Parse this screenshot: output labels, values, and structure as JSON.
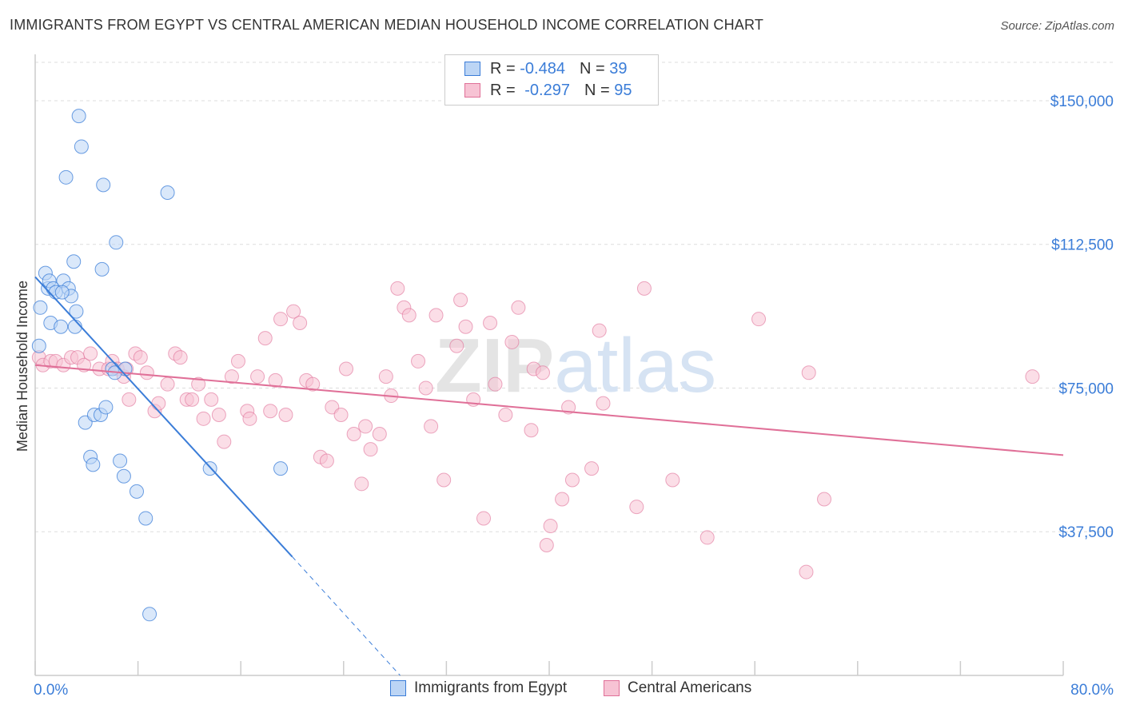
{
  "title": "IMMIGRANTS FROM EGYPT VS CENTRAL AMERICAN MEDIAN HOUSEHOLD INCOME CORRELATION CHART",
  "source": "Source: ZipAtlas.com",
  "legend": [
    {
      "r_label": "R = ",
      "r_value": "-0.484",
      "n_label": "N = ",
      "n_value": "39"
    },
    {
      "r_label": "R = ",
      "r_value": "-0.297",
      "n_label": "N = ",
      "n_value": "95"
    }
  ],
  "bottom_legend": [
    "Immigrants from Egypt",
    "Central Americans"
  ],
  "colors": {
    "egypt": "#3b7dd8",
    "egypt_fill": "#bcd5f5",
    "central": "#e07098",
    "central_fill": "#f7c3d4",
    "axis_label": "#3b7dd8",
    "grid": "#dddddd"
  },
  "chart_data": {
    "type": "scatter",
    "xlabel": "",
    "ylabel": "Median Household Income",
    "xlim": [
      0,
      80
    ],
    "ylim": [
      0,
      160000
    ],
    "x_tick_labels": [
      "0.0%",
      "80.0%"
    ],
    "y_ticks": [
      37500,
      75000,
      112500,
      150000
    ],
    "y_tick_labels": [
      "$37,500",
      "$75,000",
      "$112,500",
      "$150,000"
    ],
    "watermark": "ZIPatlas",
    "series": [
      {
        "name": "Immigrants from Egypt",
        "points": [
          [
            0.4,
            96000
          ],
          [
            0.8,
            105000
          ],
          [
            1.0,
            101000
          ],
          [
            1.1,
            103000
          ],
          [
            1.2,
            92000
          ],
          [
            1.4,
            101000
          ],
          [
            1.6,
            100000
          ],
          [
            2.0,
            91000
          ],
          [
            2.2,
            103000
          ],
          [
            2.4,
            130000
          ],
          [
            2.6,
            101000
          ],
          [
            2.8,
            99000
          ],
          [
            3.0,
            108000
          ],
          [
            3.1,
            91000
          ],
          [
            3.2,
            95000
          ],
          [
            3.4,
            146000
          ],
          [
            3.6,
            138000
          ],
          [
            3.9,
            66000
          ],
          [
            4.3,
            57000
          ],
          [
            4.5,
            55000
          ],
          [
            4.6,
            68000
          ],
          [
            5.1,
            68000
          ],
          [
            5.2,
            106000
          ],
          [
            5.3,
            128000
          ],
          [
            5.5,
            70000
          ],
          [
            6.0,
            80000
          ],
          [
            6.3,
            113000
          ],
          [
            6.6,
            56000
          ],
          [
            6.9,
            52000
          ],
          [
            7.0,
            80000
          ],
          [
            7.9,
            48000
          ],
          [
            8.6,
            41000
          ],
          [
            8.9,
            16000
          ],
          [
            10.3,
            126000
          ],
          [
            13.6,
            54000
          ],
          [
            19.1,
            54000
          ],
          [
            0.3,
            86000
          ],
          [
            6.2,
            79000
          ],
          [
            2.1,
            100000
          ]
        ],
        "trend": [
          [
            0,
            104000
          ],
          [
            20,
            31000
          ]
        ],
        "trend_dashed": [
          [
            20,
            31000
          ],
          [
            28.4,
            0
          ]
        ]
      },
      {
        "name": "Central Americans",
        "points": [
          [
            0.3,
            83000
          ],
          [
            0.6,
            81000
          ],
          [
            1.2,
            82000
          ],
          [
            1.6,
            82000
          ],
          [
            2.2,
            81000
          ],
          [
            2.8,
            83000
          ],
          [
            3.3,
            83000
          ],
          [
            3.8,
            81000
          ],
          [
            4.3,
            84000
          ],
          [
            5.0,
            80000
          ],
          [
            5.7,
            80000
          ],
          [
            6.0,
            82000
          ],
          [
            6.4,
            80000
          ],
          [
            6.9,
            78000
          ],
          [
            7.1,
            80000
          ],
          [
            7.3,
            72000
          ],
          [
            7.8,
            84000
          ],
          [
            8.2,
            83000
          ],
          [
            8.7,
            79000
          ],
          [
            9.3,
            69000
          ],
          [
            9.6,
            71000
          ],
          [
            10.3,
            76000
          ],
          [
            10.9,
            84000
          ],
          [
            11.3,
            83000
          ],
          [
            11.8,
            72000
          ],
          [
            12.2,
            72000
          ],
          [
            12.7,
            76000
          ],
          [
            13.1,
            67000
          ],
          [
            13.7,
            72000
          ],
          [
            14.3,
            68000
          ],
          [
            14.7,
            61000
          ],
          [
            15.3,
            78000
          ],
          [
            15.8,
            82000
          ],
          [
            16.5,
            69000
          ],
          [
            16.7,
            67000
          ],
          [
            17.3,
            78000
          ],
          [
            17.9,
            88000
          ],
          [
            18.3,
            69000
          ],
          [
            18.7,
            77000
          ],
          [
            19.1,
            93000
          ],
          [
            19.5,
            68000
          ],
          [
            20.1,
            95000
          ],
          [
            20.6,
            92000
          ],
          [
            21.1,
            77000
          ],
          [
            21.6,
            76000
          ],
          [
            22.2,
            57000
          ],
          [
            22.7,
            56000
          ],
          [
            23.1,
            70000
          ],
          [
            23.8,
            68000
          ],
          [
            24.2,
            80000
          ],
          [
            24.8,
            63000
          ],
          [
            25.4,
            50000
          ],
          [
            25.7,
            65000
          ],
          [
            26.1,
            59000
          ],
          [
            26.8,
            63000
          ],
          [
            27.3,
            78000
          ],
          [
            27.7,
            73000
          ],
          [
            28.2,
            101000
          ],
          [
            28.7,
            96000
          ],
          [
            29.1,
            94000
          ],
          [
            29.8,
            82000
          ],
          [
            30.4,
            75000
          ],
          [
            30.8,
            65000
          ],
          [
            31.2,
            94000
          ],
          [
            31.8,
            51000
          ],
          [
            32.8,
            86000
          ],
          [
            33.1,
            98000
          ],
          [
            33.5,
            91000
          ],
          [
            34.1,
            72000
          ],
          [
            34.9,
            41000
          ],
          [
            35.4,
            92000
          ],
          [
            35.8,
            76000
          ],
          [
            36.6,
            68000
          ],
          [
            37.1,
            87000
          ],
          [
            37.6,
            96000
          ],
          [
            38.6,
            64000
          ],
          [
            38.8,
            80000
          ],
          [
            39.5,
            79000
          ],
          [
            39.8,
            34000
          ],
          [
            40.1,
            39000
          ],
          [
            41.0,
            46000
          ],
          [
            41.5,
            70000
          ],
          [
            41.8,
            51000
          ],
          [
            43.3,
            54000
          ],
          [
            43.9,
            90000
          ],
          [
            44.2,
            71000
          ],
          [
            46.8,
            44000
          ],
          [
            47.4,
            101000
          ],
          [
            49.6,
            51000
          ],
          [
            52.3,
            36000
          ],
          [
            56.3,
            93000
          ],
          [
            60.0,
            27000
          ],
          [
            60.2,
            79000
          ],
          [
            61.4,
            46000
          ],
          [
            77.6,
            78000
          ]
        ],
        "trend": [
          [
            0,
            81000
          ],
          [
            80,
            57500
          ]
        ]
      }
    ]
  }
}
